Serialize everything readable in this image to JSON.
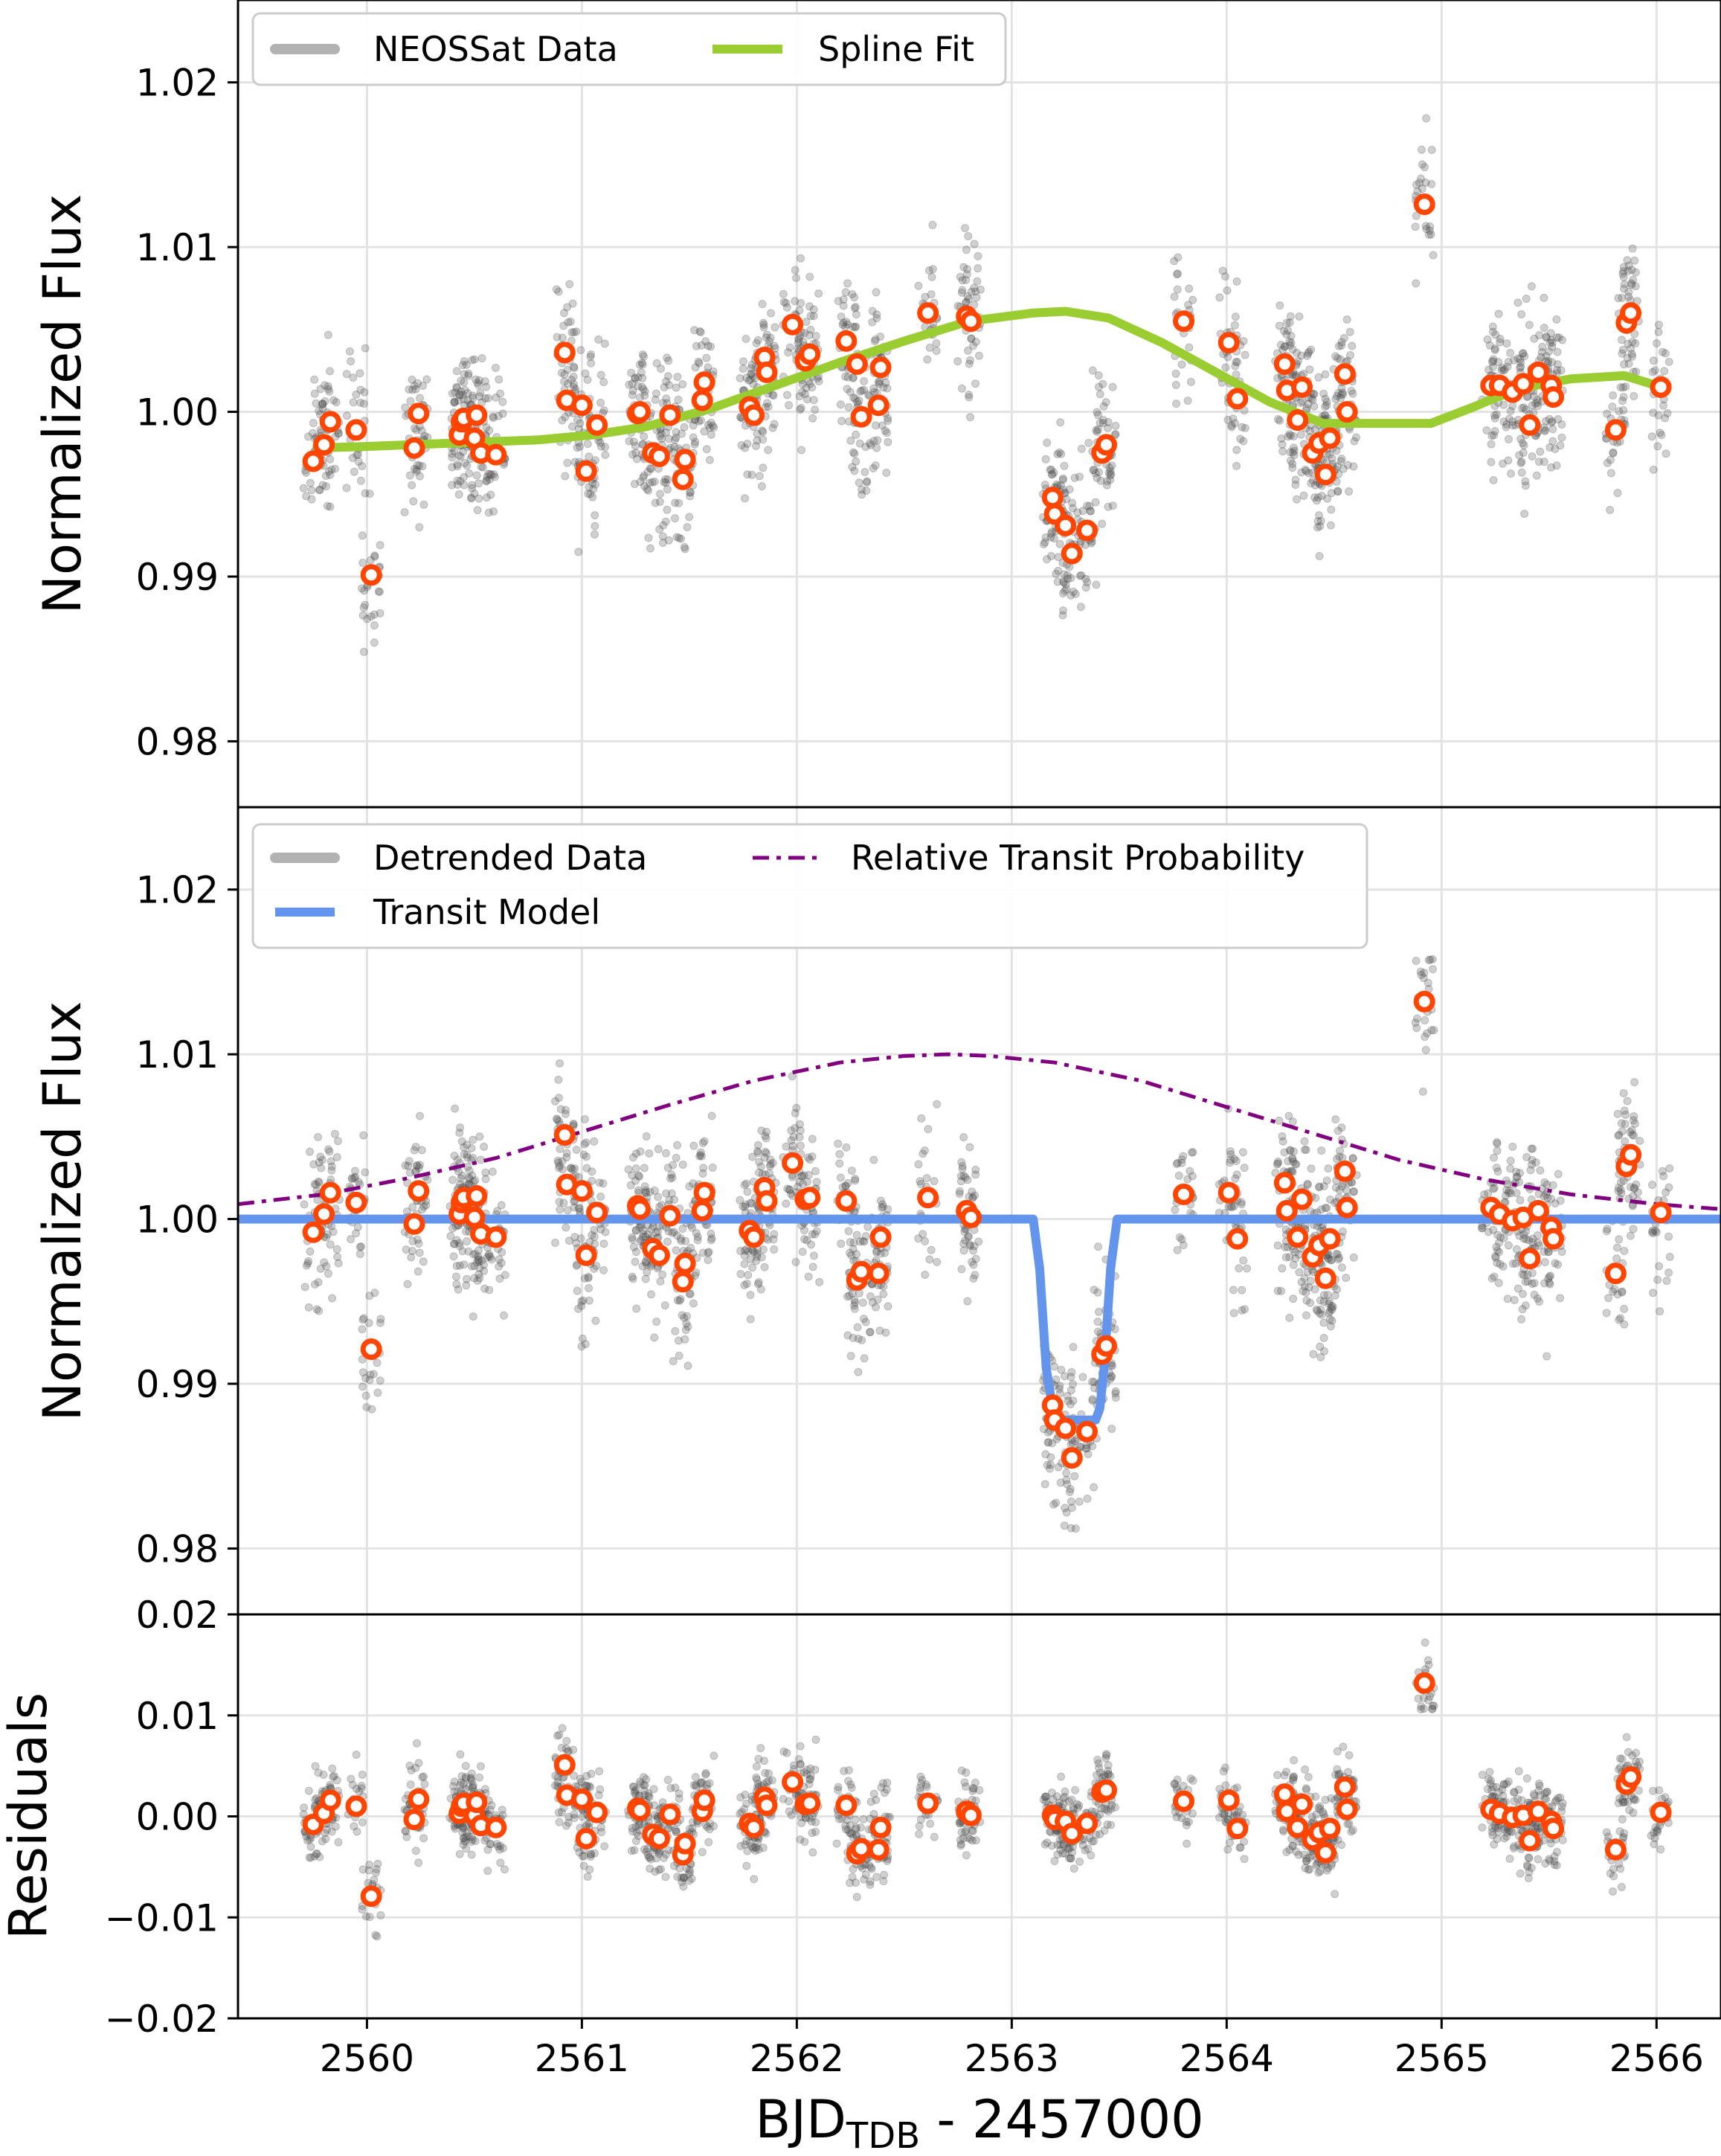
{
  "chart_data": [
    {
      "type": "scatter",
      "panel": "top",
      "ylabel": "Normalized Flux",
      "xlim": [
        2559.4,
        2566.3
      ],
      "ylim": [
        0.976,
        1.025
      ],
      "y_ticks": [
        0.98,
        0.99,
        1.0,
        1.01,
        1.02
      ],
      "y_tick_labels": [
        "0.98",
        "0.99",
        "1.00",
        "1.01",
        "1.02"
      ],
      "legend": {
        "position": "top-left",
        "entries": [
          {
            "label": "NEOSSat Data",
            "color": "#a0a0a0"
          },
          {
            "label": "Spline Fit",
            "color": "#9acd32"
          }
        ]
      },
      "series": [
        {
          "name": "Spline Fit",
          "color": "#9acd32",
          "x": [
            2559.75,
            2560.0,
            2560.4,
            2560.8,
            2561.05,
            2561.3,
            2561.6,
            2561.9,
            2562.2,
            2562.5,
            2562.8,
            2563.1,
            2563.25,
            2563.45,
            2563.7,
            2563.95,
            2564.2,
            2564.45,
            2564.7,
            2564.95,
            2565.15,
            2565.35,
            2565.6,
            2565.85,
            2566.05
          ],
          "y": [
            0.9978,
            0.9979,
            0.9981,
            0.9983,
            0.9986,
            0.9991,
            1.0002,
            1.0016,
            1.003,
            1.0043,
            1.0055,
            1.006,
            1.0061,
            1.0057,
            1.0042,
            1.0024,
            1.0006,
            0.9993,
            0.9993,
            0.9993,
            1.0003,
            1.0014,
            1.002,
            1.0022,
            1.0014
          ]
        },
        {
          "name": "Binned Data",
          "color": "#ff4500",
          "x": [
            2559.75,
            2559.8,
            2559.83,
            2559.95,
            2560.02,
            2560.22,
            2560.24,
            2560.43,
            2560.44,
            2560.45,
            2560.5,
            2560.51,
            2560.53,
            2560.6,
            2560.92,
            2560.93,
            2561.0,
            2561.02,
            2561.07,
            2561.26,
            2561.27,
            2561.33,
            2561.36,
            2561.41,
            2561.47,
            2561.48,
            2561.56,
            2561.57,
            2561.78,
            2561.8,
            2561.85,
            2561.86,
            2561.98,
            2562.04,
            2562.06,
            2562.23,
            2562.28,
            2562.3,
            2562.38,
            2562.39,
            2562.61,
            2562.79,
            2562.81,
            2563.19,
            2563.2,
            2563.25,
            2563.28,
            2563.35,
            2563.42,
            2563.44,
            2563.8,
            2564.01,
            2564.05,
            2564.27,
            2564.28,
            2564.33,
            2564.35,
            2564.4,
            2564.43,
            2564.46,
            2564.48,
            2564.55,
            2564.56,
            2564.92,
            2565.23,
            2565.27,
            2565.33,
            2565.38,
            2565.41,
            2565.45,
            2565.51,
            2565.52,
            2565.81,
            2565.86,
            2565.88,
            2566.02
          ],
          "y": [
            0.997,
            0.998,
            0.9994,
            0.9989,
            0.9901,
            0.9978,
            0.9999,
            0.9986,
            0.9994,
            0.9996,
            0.9984,
            0.9998,
            0.9975,
            0.9974,
            1.0036,
            1.0007,
            1.0004,
            0.9964,
            0.9992,
            0.9999,
            1.0,
            0.9975,
            0.9973,
            0.9998,
            0.9959,
            0.9971,
            1.0007,
            1.0018,
            1.0003,
            0.9998,
            1.0033,
            1.0024,
            1.0053,
            1.0031,
            1.0035,
            1.0043,
            1.0029,
            0.9997,
            1.0004,
            1.0027,
            1.006,
            1.0058,
            1.0055,
            0.9948,
            0.9938,
            0.9931,
            0.9914,
            0.9928,
            0.9975,
            0.998,
            1.0055,
            1.0042,
            1.0008,
            1.0029,
            1.0013,
            0.9995,
            1.0015,
            0.9975,
            0.9981,
            0.9962,
            0.9984,
            1.0023,
            1.0,
            1.0126,
            1.0016,
            1.0016,
            1.0012,
            1.0017,
            0.9992,
            1.0024,
            1.0016,
            1.0009,
            0.9989,
            1.0054,
            1.006,
            1.0015
          ]
        }
      ]
    },
    {
      "type": "scatter",
      "panel": "middle",
      "ylabel": "Normalized Flux",
      "xlim": [
        2559.4,
        2566.3
      ],
      "ylim": [
        0.976,
        1.025
      ],
      "y_ticks": [
        0.98,
        0.99,
        1.0,
        1.01,
        1.02
      ],
      "y_tick_labels": [
        "0.98",
        "0.99",
        "1.00",
        "1.01",
        "1.02"
      ],
      "legend": {
        "position": "top-left",
        "entries": [
          {
            "label": "Detrended Data",
            "color": "#a0a0a0"
          },
          {
            "label": "Transit Model",
            "color": "#6495ed"
          },
          {
            "label": "Relative Transit Probability",
            "color": "#800080"
          }
        ]
      },
      "series": [
        {
          "name": "Transit Model",
          "color": "#6495ed",
          "x": [
            2559.4,
            2563.1,
            2563.13,
            2563.16,
            2563.19,
            2563.21,
            2563.39,
            2563.41,
            2563.43,
            2563.46,
            2563.49,
            2566.3
          ],
          "y": [
            1.0,
            1.0,
            0.997,
            0.991,
            0.9885,
            0.9878,
            0.9878,
            0.9885,
            0.991,
            0.997,
            1.0,
            1.0
          ]
        },
        {
          "name": "Relative Transit Probability",
          "color": "#800080",
          "style": "dashed",
          "x": [
            2559.4,
            2559.8,
            2560.2,
            2560.6,
            2561.0,
            2561.4,
            2561.8,
            2562.2,
            2562.5,
            2562.7,
            2562.9,
            2563.2,
            2563.6,
            2564.0,
            2564.4,
            2564.8,
            2565.2,
            2565.6,
            2566.0,
            2566.3
          ],
          "y": [
            1.0009,
            1.0015,
            1.0025,
            1.0037,
            1.0053,
            1.0069,
            1.0084,
            1.0095,
            1.0099,
            1.01,
            1.0099,
            1.0095,
            1.0084,
            1.0068,
            1.0052,
            1.0036,
            1.0024,
            1.0015,
            1.0009,
            1.0006
          ]
        },
        {
          "name": "Binned Data",
          "color": "#ff4500",
          "x": [
            2559.75,
            2559.8,
            2559.83,
            2559.95,
            2560.02,
            2560.22,
            2560.24,
            2560.43,
            2560.44,
            2560.45,
            2560.5,
            2560.51,
            2560.53,
            2560.6,
            2560.92,
            2560.93,
            2561.0,
            2561.02,
            2561.07,
            2561.26,
            2561.27,
            2561.33,
            2561.36,
            2561.41,
            2561.47,
            2561.48,
            2561.56,
            2561.57,
            2561.78,
            2561.8,
            2561.85,
            2561.86,
            2561.98,
            2562.04,
            2562.06,
            2562.23,
            2562.28,
            2562.3,
            2562.38,
            2562.39,
            2562.61,
            2562.79,
            2562.81,
            2563.19,
            2563.2,
            2563.25,
            2563.28,
            2563.35,
            2563.42,
            2563.44,
            2563.8,
            2564.01,
            2564.05,
            2564.27,
            2564.28,
            2564.33,
            2564.35,
            2564.4,
            2564.43,
            2564.46,
            2564.48,
            2564.55,
            2564.56,
            2564.92,
            2565.23,
            2565.27,
            2565.33,
            2565.38,
            2565.41,
            2565.45,
            2565.51,
            2565.52,
            2565.81,
            2565.86,
            2565.88,
            2566.02
          ],
          "y": [
            0.9992,
            1.0003,
            1.0016,
            1.001,
            0.9921,
            0.9997,
            1.0017,
            1.0003,
            1.001,
            1.0013,
            1.0001,
            1.0014,
            0.9991,
            0.9989,
            1.0051,
            1.0021,
            1.0017,
            0.9978,
            1.0004,
            1.0008,
            1.0006,
            0.9982,
            0.9978,
            1.0002,
            0.9962,
            0.9973,
            1.0005,
            1.0016,
            0.9993,
            0.9989,
            1.0019,
            1.0011,
            1.0034,
            1.0012,
            1.0013,
            1.0011,
            0.9963,
            0.9968,
            0.9967,
            0.9989,
            1.0013,
            1.0005,
            1.0001,
            0.9887,
            0.9878,
            0.9873,
            0.9855,
            0.9871,
            0.9918,
            0.9923,
            1.0015,
            1.0016,
            0.9988,
            1.0022,
            1.0005,
            0.9989,
            1.0012,
            0.9977,
            0.9984,
            0.9964,
            0.9988,
            1.0029,
            1.0007,
            1.0132,
            1.0007,
            1.0003,
            0.9999,
            1.0001,
            0.9976,
            1.0005,
            0.9995,
            0.9988,
            0.9967,
            1.0032,
            1.0039,
            1.0004
          ]
        }
      ]
    },
    {
      "type": "scatter",
      "panel": "bottom",
      "ylabel": "Residuals",
      "xlabel": "BJD",
      "xlabel_subscript": "TDB",
      "xlabel_suffix": " - 2457000",
      "xlim": [
        2559.4,
        2566.3
      ],
      "ylim": [
        -0.02,
        0.02
      ],
      "x_ticks": [
        2560,
        2561,
        2562,
        2563,
        2564,
        2565,
        2566
      ],
      "x_tick_labels": [
        "2560",
        "2561",
        "2562",
        "2563",
        "2564",
        "2565",
        "2566"
      ],
      "y_ticks": [
        -0.02,
        -0.01,
        0.0,
        0.01,
        0.02
      ],
      "y_tick_labels": [
        "−0.02",
        "−0.01",
        "0.00",
        "0.01",
        "0.02"
      ],
      "series": [
        {
          "name": "Binned Residuals",
          "color": "#ff4500",
          "x": [
            2559.75,
            2559.8,
            2559.83,
            2559.95,
            2560.02,
            2560.22,
            2560.24,
            2560.43,
            2560.44,
            2560.45,
            2560.5,
            2560.51,
            2560.53,
            2560.6,
            2560.92,
            2560.93,
            2561.0,
            2561.02,
            2561.07,
            2561.26,
            2561.27,
            2561.33,
            2561.36,
            2561.41,
            2561.47,
            2561.48,
            2561.56,
            2561.57,
            2561.78,
            2561.8,
            2561.85,
            2561.86,
            2561.98,
            2562.04,
            2562.06,
            2562.23,
            2562.28,
            2562.3,
            2562.38,
            2562.39,
            2562.61,
            2562.79,
            2562.81,
            2563.19,
            2563.2,
            2563.25,
            2563.28,
            2563.35,
            2563.42,
            2563.44,
            2563.8,
            2564.01,
            2564.05,
            2564.27,
            2564.28,
            2564.33,
            2564.35,
            2564.4,
            2564.43,
            2564.46,
            2564.48,
            2564.55,
            2564.56,
            2564.92,
            2565.23,
            2565.27,
            2565.33,
            2565.38,
            2565.41,
            2565.45,
            2565.51,
            2565.52,
            2565.81,
            2565.86,
            2565.88,
            2566.02
          ],
          "y": [
            -0.0008,
            0.0003,
            0.0016,
            0.001,
            -0.0079,
            -0.0003,
            0.0017,
            0.0003,
            0.001,
            0.0013,
            0.0001,
            0.0014,
            -0.0009,
            -0.0011,
            0.0051,
            0.0021,
            0.0017,
            -0.0022,
            0.0004,
            0.0008,
            0.0006,
            -0.0018,
            -0.0022,
            0.0002,
            -0.0038,
            -0.0027,
            0.0005,
            0.0016,
            -0.0007,
            -0.0011,
            0.0019,
            0.0011,
            0.0034,
            0.0012,
            0.0013,
            0.0011,
            -0.0037,
            -0.0032,
            -0.0033,
            -0.0011,
            0.0013,
            0.0005,
            0.0001,
            0.0001,
            -0.0003,
            -0.0005,
            -0.0017,
            -0.0007,
            0.0024,
            0.0026,
            0.0015,
            0.0016,
            -0.0012,
            0.0022,
            0.0005,
            -0.0011,
            0.0012,
            -0.0023,
            -0.0016,
            -0.0036,
            -0.0012,
            0.0029,
            0.0007,
            0.0132,
            0.0007,
            0.0003,
            -0.0001,
            0.0001,
            -0.0024,
            0.0005,
            -0.0005,
            -0.0012,
            -0.0033,
            0.0032,
            0.0039,
            0.0004
          ]
        }
      ]
    }
  ]
}
